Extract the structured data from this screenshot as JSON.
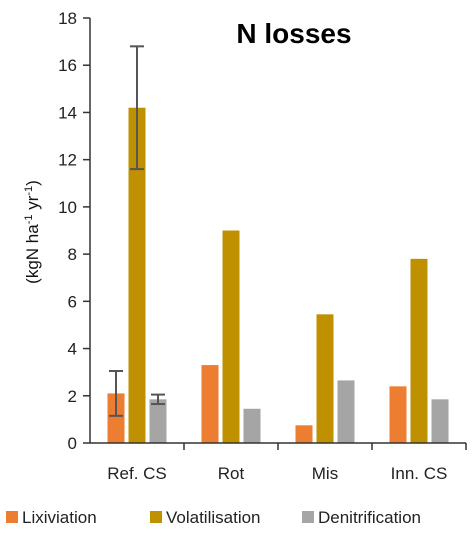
{
  "chart_data": {
    "type": "bar",
    "title": "N losses",
    "ylabel": "(kgN ha-1 yr-1)",
    "ylabel_parts": {
      "prefix": "(kgN ha",
      "sup1": "-1",
      "mid": " yr",
      "sup2": "-1",
      "suffix": ")"
    },
    "xlabel": "",
    "ylim": [
      0,
      18
    ],
    "yticks": [
      0,
      2,
      4,
      6,
      8,
      10,
      12,
      14,
      16,
      18
    ],
    "grid": false,
    "legend_position": "bottom",
    "categories": [
      "Ref. CS",
      "Rot",
      "Mis",
      "Inn. CS"
    ],
    "series": [
      {
        "name": "Lixiviation",
        "color": "#ed7d31",
        "values": [
          2.1,
          3.3,
          0.75,
          2.4
        ],
        "errors": [
          0.95,
          null,
          null,
          null
        ]
      },
      {
        "name": "Volatilisation",
        "color": "#bf9000",
        "values": [
          14.2,
          9.0,
          5.45,
          7.8
        ],
        "errors": [
          2.6,
          null,
          null,
          null
        ]
      },
      {
        "name": "Denitrification",
        "color": "#a5a5a5",
        "values": [
          1.85,
          1.45,
          2.65,
          1.85
        ],
        "errors": [
          0.2,
          null,
          null,
          null
        ]
      }
    ]
  }
}
